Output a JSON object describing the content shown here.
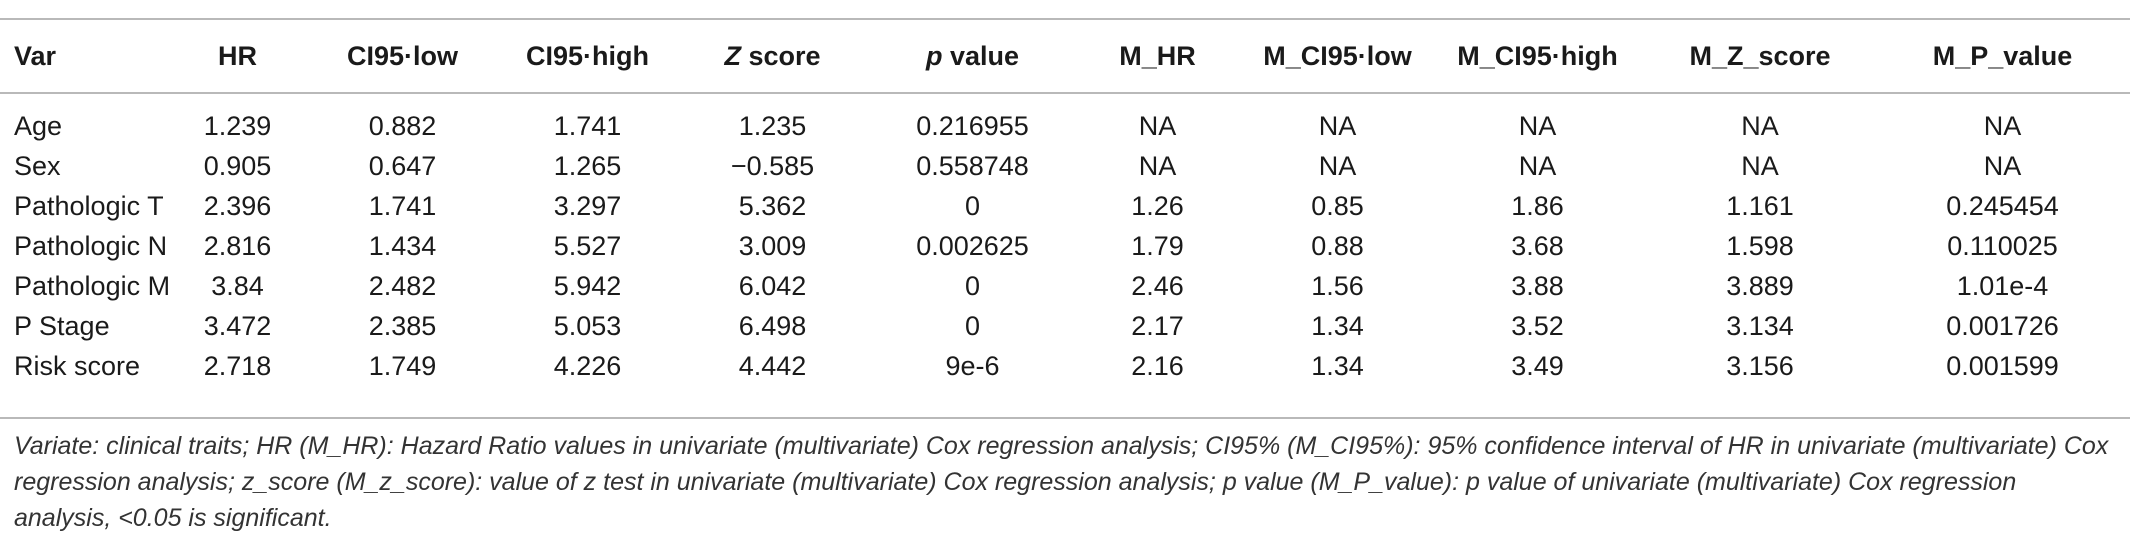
{
  "table": {
    "headers": [
      "Var",
      "HR",
      "CI95·low",
      "CI95·high",
      "Z score",
      "p value",
      "M_HR",
      "M_CI95·low",
      "M_CI95·high",
      "M_Z_score",
      "M_P_value"
    ],
    "italic_header_parts": {
      "z": "Z",
      "z_rest": " score",
      "p": "p",
      "p_rest": " value"
    },
    "rows": [
      [
        "Age",
        "1.239",
        "0.882",
        "1.741",
        "1.235",
        "0.216955",
        "NA",
        "NA",
        "NA",
        "NA",
        "NA"
      ],
      [
        "Sex",
        "0.905",
        "0.647",
        "1.265",
        "−0.585",
        "0.558748",
        "NA",
        "NA",
        "NA",
        "NA",
        "NA"
      ],
      [
        "Pathologic T",
        "2.396",
        "1.741",
        "3.297",
        "5.362",
        "0",
        "1.26",
        "0.85",
        "1.86",
        "1.161",
        "0.245454"
      ],
      [
        "Pathologic N",
        "2.816",
        "1.434",
        "5.527",
        "3.009",
        "0.002625",
        "1.79",
        "0.88",
        "3.68",
        "1.598",
        "0.110025"
      ],
      [
        "Pathologic M",
        "3.84",
        "2.482",
        "5.942",
        "6.042",
        "0",
        "2.46",
        "1.56",
        "3.88",
        "3.889",
        "1.01e-4"
      ],
      [
        "P Stage",
        "3.472",
        "2.385",
        "5.053",
        "6.498",
        "0",
        "2.17",
        "1.34",
        "3.52",
        "3.134",
        "0.001726"
      ],
      [
        "Risk score",
        "2.718",
        "1.749",
        "4.226",
        "4.442",
        "9e-6",
        "2.16",
        "1.34",
        "3.49",
        "3.156",
        "0.001599"
      ]
    ]
  },
  "footnote": "Variate: clinical traits; HR (M_HR): Hazard Ratio values in univariate (multivariate) Cox regression analysis; CI95% (M_CI95%): 95% confidence interval of HR in univariate (multivariate) Cox regression analysis; z_score (M_z_score): value of z test in univariate (multivariate) Cox regression analysis; p value (M_P_value): p value of univariate (multivariate) Cox regression analysis, <0.05 is significant."
}
